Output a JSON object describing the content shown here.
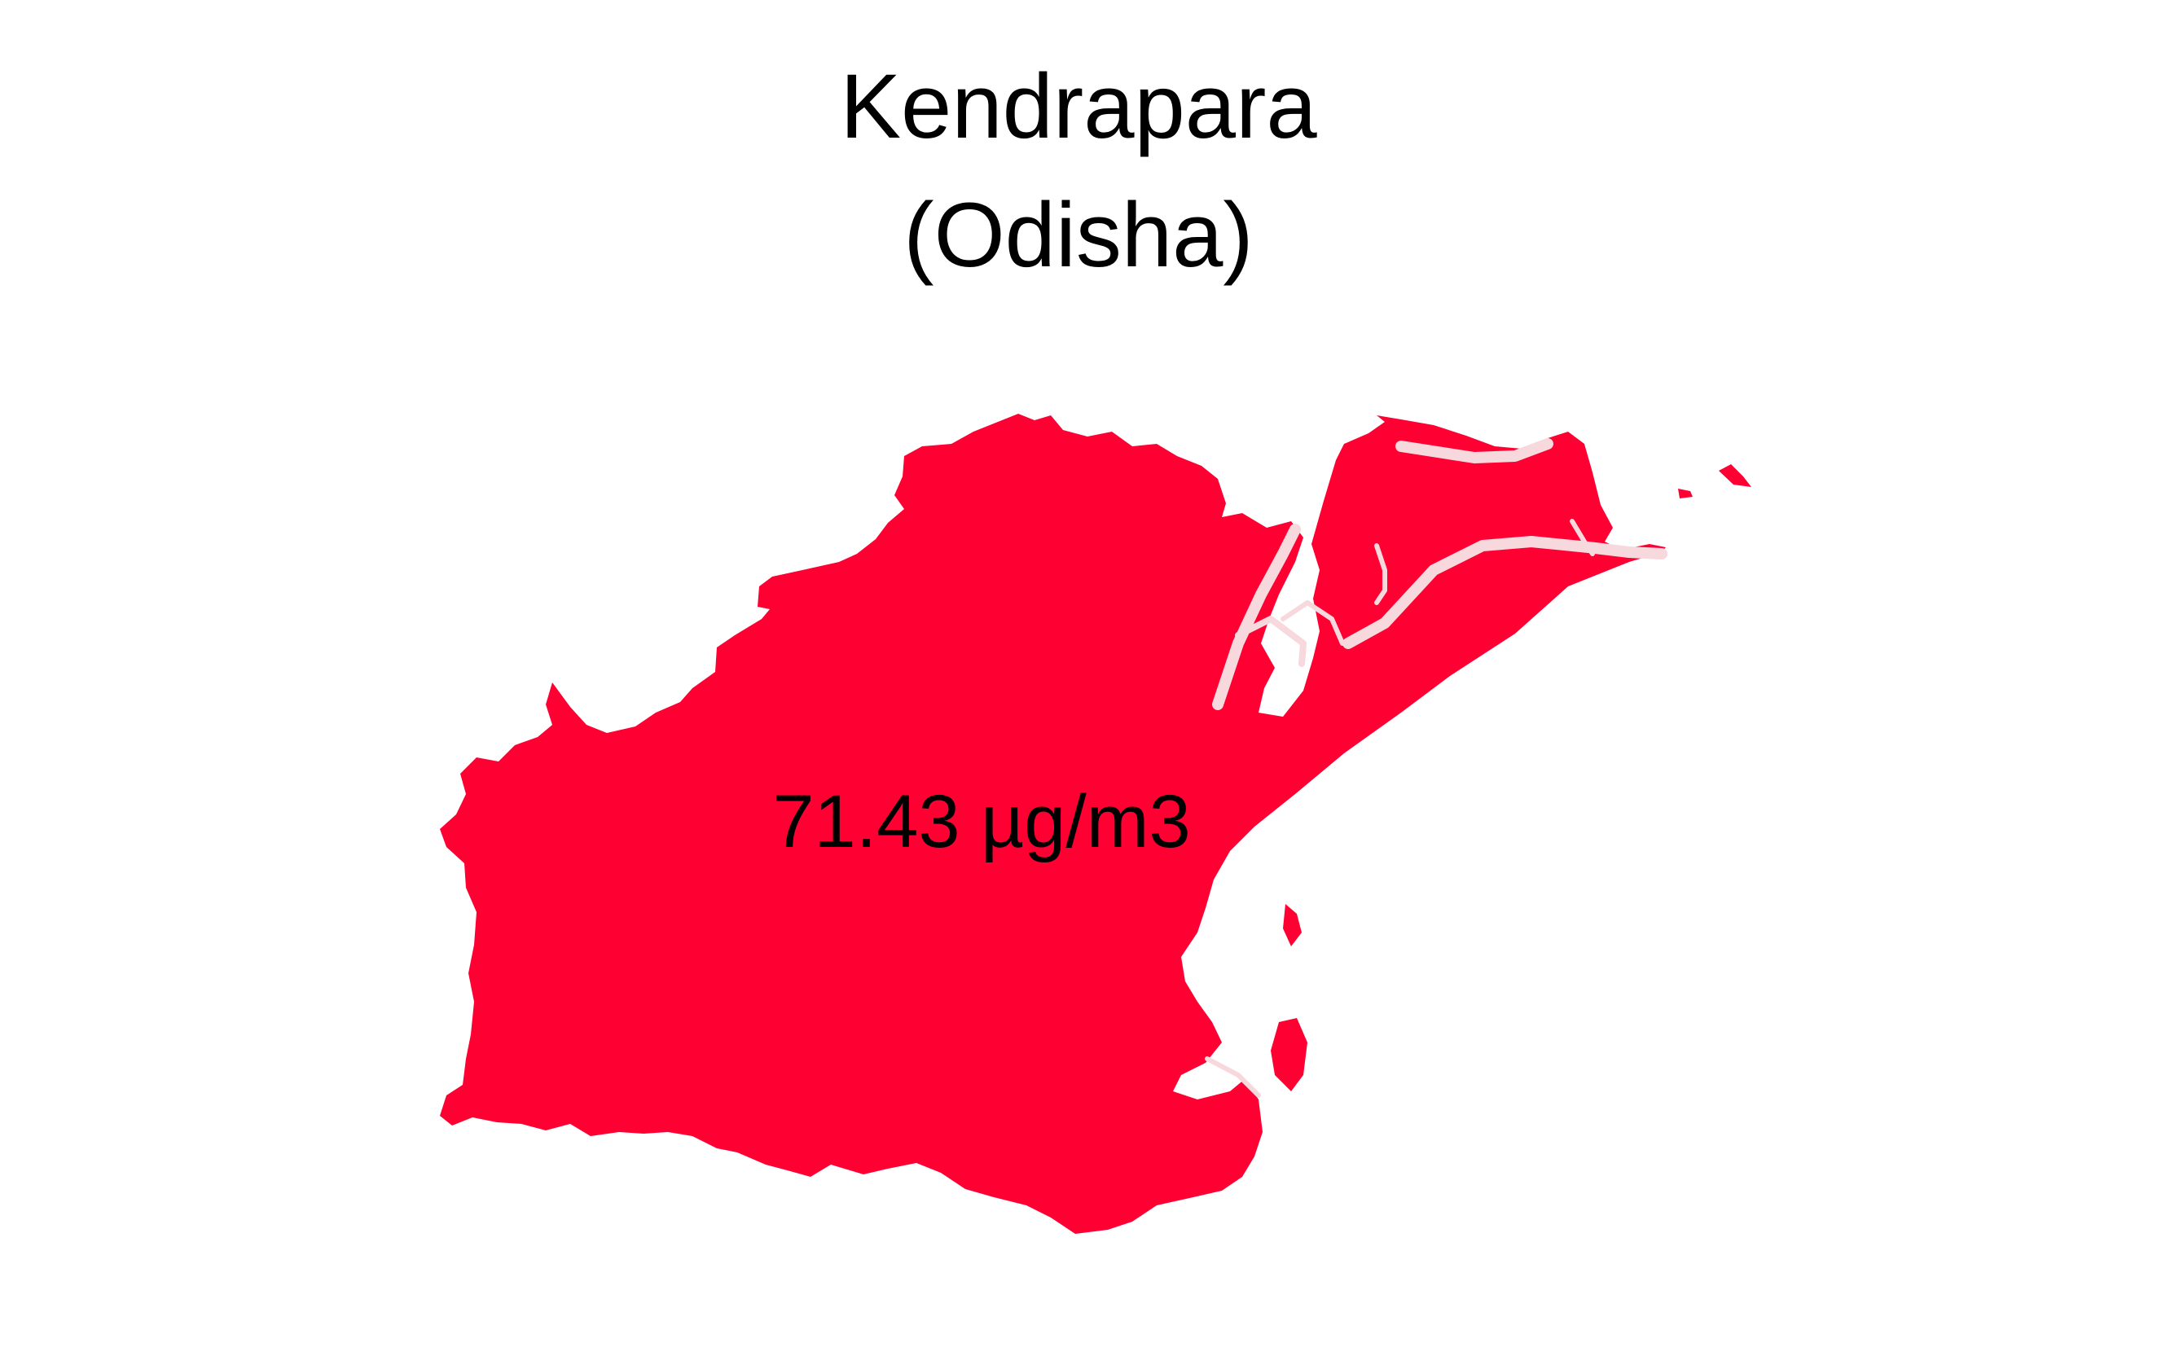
{
  "title": {
    "line1": "Kendrapara",
    "line2": "(Odisha)"
  },
  "region": {
    "name": "Kendrapara",
    "state": "Odisha",
    "value_label": "71.43 µg/m3",
    "fill_color": "#ff0033",
    "river_color": "#f7d8dc"
  }
}
